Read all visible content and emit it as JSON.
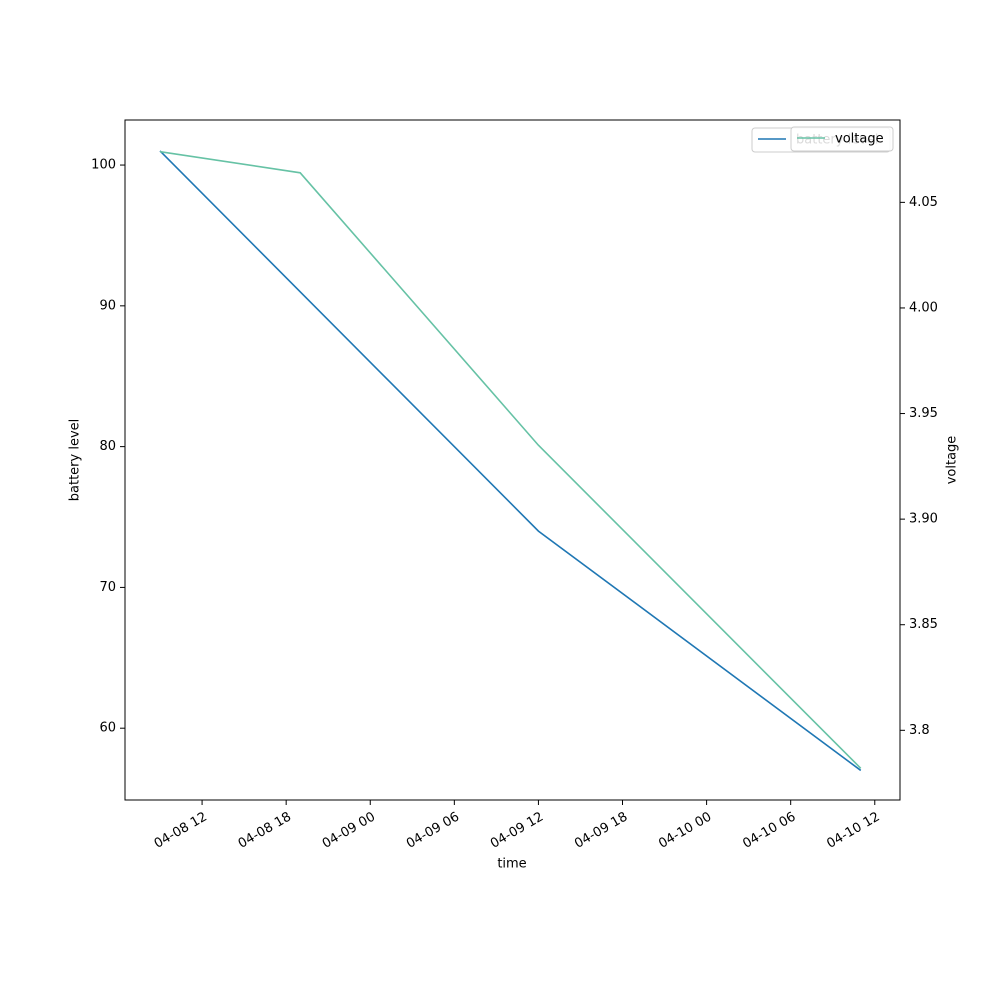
{
  "chart_data": {
    "type": "line",
    "x_label": "time",
    "y_label": "battery level",
    "y2_label": "voltage",
    "series": [
      {
        "name": "battery level",
        "color": "#1f77b4",
        "x": [
          "04-08 09",
          "04-09 12",
          "04-10 11"
        ],
        "values": [
          101,
          74,
          57
        ]
      },
      {
        "name": "voltage",
        "color": "#66c2a5",
        "axis": "y2",
        "x": [
          "04-08 09",
          "04-08 19",
          "04-09 12",
          "04-10 11"
        ],
        "values": [
          4.074,
          4.064,
          3.935,
          3.782
        ]
      }
    ],
    "xlim": [
      "04-08 06:30",
      "04-10 13:48"
    ],
    "xticks": [
      "04-08 12",
      "04-08 18",
      "04-09 00",
      "04-09 06",
      "04-09 12",
      "04-09 18",
      "04-10 00",
      "04-10 06",
      "04-10 12"
    ],
    "ylim": [
      54.9,
      103.2
    ],
    "yticks": [
      60,
      70,
      80,
      90,
      100
    ],
    "y2lim": [
      3.767,
      4.089
    ],
    "y2ticks": [
      3.8,
      3.85,
      {
        "value": 3.9,
        "label": "3.90"
      },
      3.95,
      {
        "value": 4.0,
        "label": "4.00"
      },
      4.05
    ],
    "legend": "upper right"
  }
}
